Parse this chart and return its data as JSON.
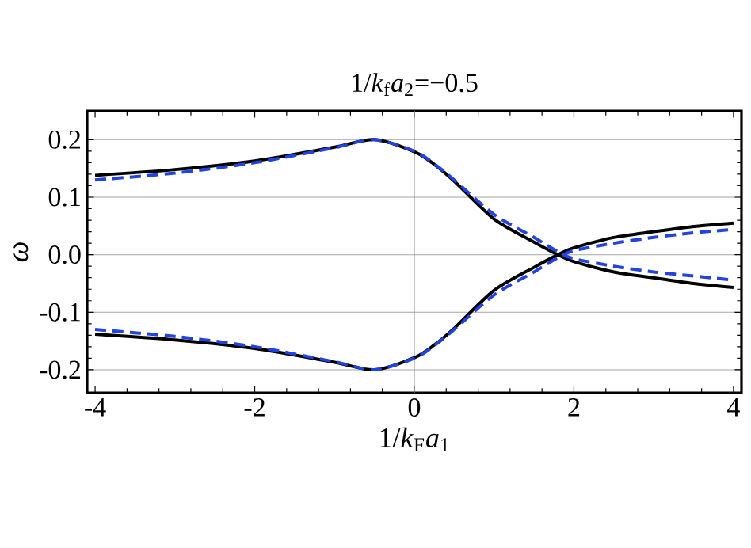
{
  "chart_data": {
    "type": "line",
    "title": "1/*k*$_{f}$*a*$_{2}$=−0.5",
    "xlabel": "1/*k*$_{F}$*a*$_{1}$",
    "ylabel": "ω",
    "x": [
      -4,
      -3,
      -2,
      -1,
      -0.5,
      0,
      0.25,
      0.5,
      1,
      1.5,
      1.8,
      2,
      2.5,
      3,
      3.5,
      4
    ],
    "series": [
      {
        "color": "#000000",
        "line_style": "solid",
        "values": [
          0.138,
          0.148,
          0.163,
          0.187,
          0.2,
          0.179,
          0.157,
          0.128,
          0.062,
          0.022,
          0.0,
          -0.012,
          -0.03,
          -0.04,
          -0.05,
          -0.057
        ]
      },
      {
        "color": "#000000",
        "line_style": "solid",
        "values": [
          -0.138,
          -0.148,
          -0.163,
          -0.187,
          -0.2,
          -0.179,
          -0.157,
          -0.128,
          -0.062,
          -0.022,
          0.0,
          0.012,
          0.03,
          0.04,
          0.049,
          0.055
        ]
      },
      {
        "color": "#2244dd",
        "line_style": "dashed",
        "values": [
          0.13,
          0.142,
          0.16,
          0.186,
          0.2,
          0.18,
          0.158,
          0.13,
          0.07,
          0.03,
          0.005,
          -0.007,
          -0.02,
          -0.03,
          -0.037,
          -0.044
        ]
      },
      {
        "color": "#2244dd",
        "line_style": "dashed",
        "values": [
          -0.13,
          -0.142,
          -0.16,
          -0.186,
          -0.2,
          -0.18,
          -0.158,
          -0.13,
          -0.07,
          -0.03,
          -0.005,
          0.007,
          0.02,
          0.03,
          0.038,
          0.044
        ]
      }
    ],
    "xlim": [
      -4.1,
      4.1
    ],
    "ylim": [
      -0.24,
      0.25
    ],
    "xticks": [
      -4,
      -2,
      0,
      2,
      4
    ],
    "yticks": [
      -0.2,
      -0.1,
      {
        "value": 0,
        "label": "0.0"
      },
      0.1,
      0.2
    ],
    "grid": "y",
    "ref_lines": [
      {
        "axis": "x",
        "value": 0,
        "color": "#999999"
      }
    ]
  }
}
